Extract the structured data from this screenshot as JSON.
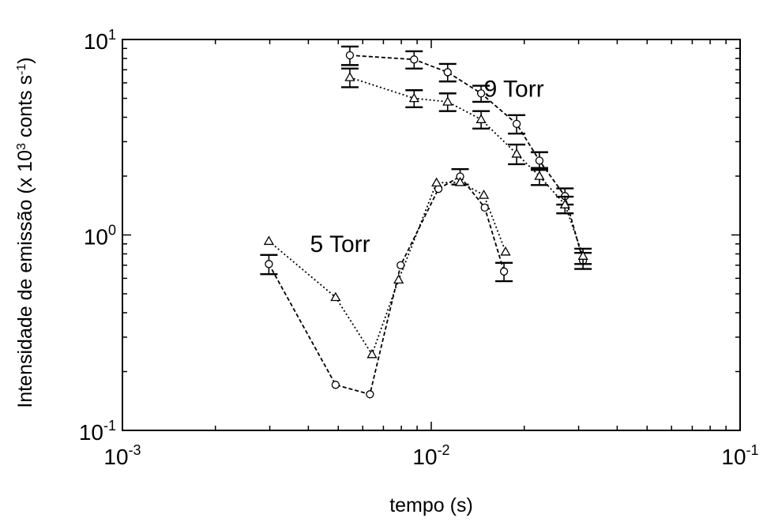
{
  "chart_data": {
    "type": "scatter",
    "xlabel": "tempo (s)",
    "ylabel_main": "Intensidade de emissão (x 10",
    "ylabel_exp": "3",
    "ylabel_unit": " conts s",
    "ylabel_exp2": "-1",
    "ylabel_close": ")",
    "x_scale": "log",
    "y_scale": "log",
    "xlim": [
      0.001,
      0.1
    ],
    "ylim": [
      0.1,
      10
    ],
    "grid": false,
    "x_ticks": [
      {
        "value": 0.001,
        "base": "10",
        "exp": "-3"
      },
      {
        "value": 0.01,
        "base": "10",
        "exp": "-2"
      },
      {
        "value": 0.1,
        "base": "10",
        "exp": "-1"
      }
    ],
    "y_ticks": [
      {
        "value": 0.1,
        "base": "10",
        "exp": "-1"
      },
      {
        "value": 1,
        "base": "10",
        "exp": "0"
      },
      {
        "value": 10,
        "base": "10",
        "exp": "1"
      }
    ],
    "annotations": [
      {
        "text": "9 Torr",
        "x": 0.0148,
        "y": 5.1
      },
      {
        "text": "5 Torr",
        "x": 0.00405,
        "y": 0.82
      }
    ],
    "series": [
      {
        "marker": "circle",
        "line": "dashed",
        "points": [
          {
            "x": 0.00545,
            "y": 8.3,
            "err": 0.9
          },
          {
            "x": 0.0088,
            "y": 7.9,
            "err": 0.8
          },
          {
            "x": 0.0113,
            "y": 6.8,
            "err": 0.7
          },
          {
            "x": 0.0145,
            "y": 5.3,
            "err": 0.5
          },
          {
            "x": 0.0189,
            "y": 3.7,
            "err": 0.4
          },
          {
            "x": 0.0224,
            "y": 2.4,
            "err": 0.25
          },
          {
            "x": 0.0271,
            "y": 1.58,
            "err": 0.15
          },
          {
            "x": 0.031,
            "y": 0.74,
            "err": 0.07
          }
        ]
      },
      {
        "marker": "triangle",
        "line": "dotted",
        "points": [
          {
            "x": 0.00545,
            "y": 6.4,
            "err": 0.7
          },
          {
            "x": 0.0088,
            "y": 5.0,
            "err": 0.5
          },
          {
            "x": 0.0113,
            "y": 4.8,
            "err": 0.5
          },
          {
            "x": 0.0145,
            "y": 3.9,
            "err": 0.4
          },
          {
            "x": 0.0189,
            "y": 2.6,
            "err": 0.3
          },
          {
            "x": 0.0224,
            "y": 2.0,
            "err": 0.2
          },
          {
            "x": 0.0271,
            "y": 1.43,
            "err": 0.14
          },
          {
            "x": 0.031,
            "y": 0.78,
            "err": 0.07
          }
        ]
      },
      {
        "marker": "circle",
        "line": "dashed",
        "points": [
          {
            "x": 0.00298,
            "y": 0.71,
            "err": 0.08
          },
          {
            "x": 0.0049,
            "y": 0.171
          },
          {
            "x": 0.00633,
            "y": 0.153
          },
          {
            "x": 0.00796,
            "y": 0.7
          },
          {
            "x": 0.01055,
            "y": 1.72
          },
          {
            "x": 0.0124,
            "y": 1.99,
            "err": 0.18
          },
          {
            "x": 0.0149,
            "y": 1.38
          },
          {
            "x": 0.0172,
            "y": 0.65,
            "err": 0.07
          }
        ]
      },
      {
        "marker": "triangle",
        "line": "dotted",
        "points": [
          {
            "x": 0.00298,
            "y": 0.93
          },
          {
            "x": 0.0049,
            "y": 0.48
          },
          {
            "x": 0.00643,
            "y": 0.245
          },
          {
            "x": 0.00784,
            "y": 0.59
          },
          {
            "x": 0.0104,
            "y": 1.85
          },
          {
            "x": 0.0124,
            "y": 1.86
          },
          {
            "x": 0.0148,
            "y": 1.6
          },
          {
            "x": 0.0174,
            "y": 0.82
          }
        ]
      }
    ]
  }
}
